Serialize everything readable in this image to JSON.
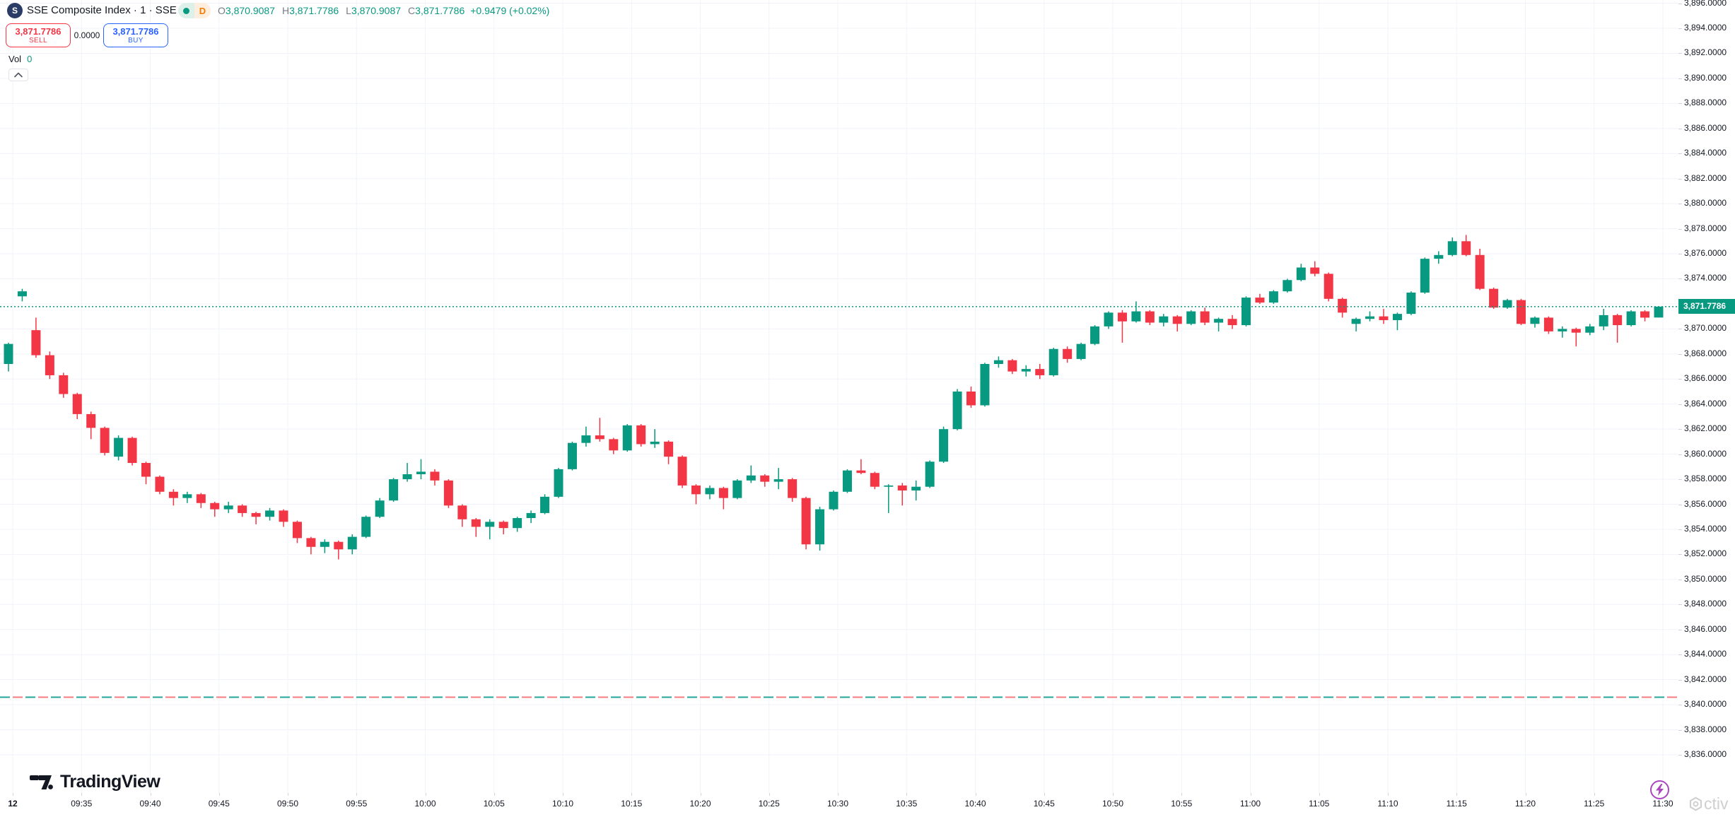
{
  "header": {
    "symbol_title": "SSE Composite Index · 1 · SSE",
    "timeframe_badge": "D",
    "ohlc": {
      "o_label": "O",
      "o": "3,870.9087",
      "h_label": "H",
      "h": "3,871.7786",
      "l_label": "L",
      "l": "3,870.9087",
      "c_label": "C",
      "c": "3,871.7786",
      "change": "+0.9479 (+0.02%)"
    }
  },
  "trade_panel": {
    "sell_price": "3,871.7786",
    "sell_label": "SELL",
    "spread": "0.0000",
    "buy_price": "3,871.7786",
    "buy_label": "BUY"
  },
  "volume": {
    "label": "Vol",
    "value": "0"
  },
  "price_axis": {
    "labels": [
      "3,896.0000",
      "3,894.0000",
      "3,892.0000",
      "3,890.0000",
      "3,888.0000",
      "3,886.0000",
      "3,884.0000",
      "3,882.0000",
      "3,880.0000",
      "3,878.0000",
      "3,876.0000",
      "3,874.0000",
      "3,872.0000",
      "3,870.0000",
      "3,868.0000",
      "3,866.0000",
      "3,864.0000",
      "3,862.0000",
      "3,860.0000",
      "3,858.0000",
      "3,856.0000",
      "3,854.0000",
      "3,852.0000",
      "3,850.0000",
      "3,848.0000",
      "3,846.0000",
      "3,844.0000",
      "3,842.0000",
      "3,840.0000",
      "3,838.0000",
      "3,836.0000"
    ],
    "last_price_label": "3,871.7786"
  },
  "time_axis": {
    "labels": [
      "12",
      "09:35",
      "09:40",
      "09:45",
      "09:50",
      "09:55",
      "10:00",
      "10:05",
      "10:10",
      "10:15",
      "10:20",
      "10:25",
      "10:30",
      "10:35",
      "10:40",
      "10:45",
      "10:50",
      "10:55",
      "11:00",
      "11:05",
      "11:10",
      "11:15",
      "11:20",
      "11:25",
      "11:30"
    ]
  },
  "footer": {
    "logo_text": "TradingView"
  },
  "watermark": {
    "text": "ctiv"
  },
  "colors": {
    "up": "#089981",
    "down": "#f23645",
    "buy": "#2962ff",
    "sell": "#f23645",
    "accent": "#089981",
    "grid": "#f0f3fa",
    "baseline_up": "#26a69a",
    "baseline_down": "#f77c80"
  },
  "chart_data": {
    "type": "candlestick",
    "title": "SSE Composite Index, 1-minute candles",
    "ylim": [
      3836,
      3896
    ],
    "last_price": 3871.7786,
    "baseline_price": 3840.6,
    "x": [
      "09:30",
      "09:31",
      "09:32",
      "09:33",
      "09:34",
      "09:35",
      "09:36",
      "09:37",
      "09:38",
      "09:39",
      "09:40",
      "09:41",
      "09:42",
      "09:43",
      "09:44",
      "09:45",
      "09:46",
      "09:47",
      "09:48",
      "09:49",
      "09:50",
      "09:51",
      "09:52",
      "09:53",
      "09:54",
      "09:55",
      "09:56",
      "09:57",
      "09:58",
      "09:59",
      "10:00",
      "10:01",
      "10:02",
      "10:03",
      "10:04",
      "10:05",
      "10:06",
      "10:07",
      "10:08",
      "10:09",
      "10:10",
      "10:11",
      "10:12",
      "10:13",
      "10:14",
      "10:15",
      "10:16",
      "10:17",
      "10:18",
      "10:19",
      "10:20",
      "10:21",
      "10:22",
      "10:23",
      "10:24",
      "10:25",
      "10:26",
      "10:27",
      "10:28",
      "10:29",
      "10:30",
      "10:31",
      "10:32",
      "10:33",
      "10:34",
      "10:35",
      "10:36",
      "10:37",
      "10:38",
      "10:39",
      "10:40",
      "10:41",
      "10:42",
      "10:43",
      "10:44",
      "10:45",
      "10:46",
      "10:47",
      "10:48",
      "10:49",
      "10:50",
      "10:51",
      "10:52",
      "10:53",
      "10:54",
      "10:55",
      "10:56",
      "10:57",
      "10:58",
      "10:59",
      "11:00",
      "11:01",
      "11:02",
      "11:03",
      "11:04",
      "11:05",
      "11:06",
      "11:07",
      "11:08",
      "11:09",
      "11:10",
      "11:11",
      "11:12",
      "11:13",
      "11:14",
      "11:15",
      "11:16",
      "11:17",
      "11:18",
      "11:19",
      "11:20",
      "11:21",
      "11:22",
      "11:23",
      "11:24",
      "11:25",
      "11:26",
      "11:27",
      "11:28",
      "11:29",
      "11:30"
    ],
    "series": [
      {
        "name": "SSE Composite Index",
        "ohlc": [
          [
            3867.2,
            3868.9,
            3866.6,
            3868.8
          ],
          [
            3872.6,
            3873.2,
            3872.2,
            3873.0
          ],
          [
            3869.9,
            3870.9,
            3867.7,
            3867.9
          ],
          [
            3867.9,
            3868.2,
            3866.0,
            3866.3
          ],
          [
            3866.3,
            3866.5,
            3864.5,
            3864.8
          ],
          [
            3864.8,
            3864.9,
            3862.8,
            3863.2
          ],
          [
            3863.2,
            3863.4,
            3861.2,
            3862.1
          ],
          [
            3862.1,
            3862.2,
            3859.9,
            3860.1
          ],
          [
            3859.8,
            3861.5,
            3859.5,
            3861.3
          ],
          [
            3861.3,
            3861.4,
            3859.1,
            3859.3
          ],
          [
            3859.3,
            3859.4,
            3857.6,
            3858.2
          ],
          [
            3858.2,
            3858.3,
            3856.8,
            3857.0
          ],
          [
            3857.0,
            3857.2,
            3855.9,
            3856.5
          ],
          [
            3856.5,
            3857.0,
            3856.1,
            3856.8
          ],
          [
            3856.8,
            3856.9,
            3855.7,
            3856.1
          ],
          [
            3856.1,
            3856.2,
            3855.0,
            3855.6
          ],
          [
            3855.6,
            3856.2,
            3855.3,
            3855.9
          ],
          [
            3855.9,
            3856.0,
            3855.0,
            3855.3
          ],
          [
            3855.3,
            3855.4,
            3854.4,
            3855.0
          ],
          [
            3855.0,
            3855.7,
            3854.7,
            3855.5
          ],
          [
            3855.5,
            3855.6,
            3854.2,
            3854.6
          ],
          [
            3854.6,
            3854.7,
            3852.9,
            3853.3
          ],
          [
            3853.3,
            3853.4,
            3852.0,
            3852.6
          ],
          [
            3852.6,
            3853.2,
            3852.1,
            3853.0
          ],
          [
            3853.0,
            3853.1,
            3851.6,
            3852.4
          ],
          [
            3852.4,
            3853.6,
            3852.0,
            3853.4
          ],
          [
            3853.4,
            3855.1,
            3853.3,
            3855.0
          ],
          [
            3855.0,
            3856.5,
            3854.9,
            3856.3
          ],
          [
            3856.3,
            3858.1,
            3856.2,
            3858.0
          ],
          [
            3858.0,
            3859.3,
            3857.8,
            3858.4
          ],
          [
            3858.4,
            3859.6,
            3858.0,
            3858.6
          ],
          [
            3858.6,
            3858.8,
            3857.5,
            3857.9
          ],
          [
            3857.9,
            3858.0,
            3855.7,
            3855.9
          ],
          [
            3855.9,
            3856.0,
            3854.2,
            3854.8
          ],
          [
            3854.8,
            3854.9,
            3853.4,
            3854.2
          ],
          [
            3854.2,
            3854.8,
            3853.2,
            3854.6
          ],
          [
            3854.6,
            3854.7,
            3853.6,
            3854.1
          ],
          [
            3854.1,
            3855.0,
            3853.8,
            3854.9
          ],
          [
            3854.9,
            3855.5,
            3854.5,
            3855.3
          ],
          [
            3855.3,
            3856.8,
            3855.2,
            3856.6
          ],
          [
            3856.6,
            3858.9,
            3856.5,
            3858.8
          ],
          [
            3858.8,
            3861.0,
            3858.7,
            3860.9
          ],
          [
            3860.9,
            3862.2,
            3860.6,
            3861.5
          ],
          [
            3861.5,
            3862.9,
            3861.0,
            3861.2
          ],
          [
            3861.2,
            3861.3,
            3860.0,
            3860.3
          ],
          [
            3860.3,
            3862.4,
            3860.2,
            3862.3
          ],
          [
            3862.3,
            3862.4,
            3860.6,
            3860.8
          ],
          [
            3860.8,
            3862.0,
            3860.5,
            3861.0
          ],
          [
            3861.0,
            3861.1,
            3859.2,
            3859.8
          ],
          [
            3859.8,
            3859.9,
            3857.3,
            3857.5
          ],
          [
            3857.5,
            3857.6,
            3856.0,
            3856.8
          ],
          [
            3856.8,
            3857.5,
            3856.4,
            3857.3
          ],
          [
            3857.3,
            3857.4,
            3855.6,
            3856.5
          ],
          [
            3856.5,
            3858.0,
            3856.4,
            3857.9
          ],
          [
            3857.9,
            3859.1,
            3857.7,
            3858.3
          ],
          [
            3858.3,
            3858.4,
            3857.4,
            3857.8
          ],
          [
            3857.8,
            3858.9,
            3857.2,
            3858.0
          ],
          [
            3858.0,
            3858.1,
            3856.2,
            3856.5
          ],
          [
            3856.5,
            3856.6,
            3852.4,
            3852.8
          ],
          [
            3852.8,
            3855.8,
            3852.3,
            3855.6
          ],
          [
            3855.6,
            3857.1,
            3855.5,
            3857.0
          ],
          [
            3857.0,
            3858.8,
            3856.9,
            3858.7
          ],
          [
            3858.7,
            3859.6,
            3858.4,
            3858.5
          ],
          [
            3858.5,
            3858.6,
            3857.2,
            3857.4
          ],
          [
            3857.4,
            3857.6,
            3855.3,
            3857.5
          ],
          [
            3857.5,
            3857.7,
            3855.9,
            3857.1
          ],
          [
            3857.1,
            3857.9,
            3856.3,
            3857.4
          ],
          [
            3857.4,
            3859.5,
            3857.3,
            3859.4
          ],
          [
            3859.4,
            3862.2,
            3859.3,
            3862.0
          ],
          [
            3862.0,
            3865.2,
            3861.9,
            3865.0
          ],
          [
            3865.0,
            3865.4,
            3863.7,
            3863.9
          ],
          [
            3863.9,
            3867.3,
            3863.8,
            3867.2
          ],
          [
            3867.2,
            3867.8,
            3866.9,
            3867.5
          ],
          [
            3867.5,
            3867.6,
            3866.4,
            3866.6
          ],
          [
            3866.6,
            3867.1,
            3866.2,
            3866.8
          ],
          [
            3866.8,
            3867.2,
            3866.0,
            3866.3
          ],
          [
            3866.3,
            3868.5,
            3866.2,
            3868.4
          ],
          [
            3868.4,
            3868.6,
            3867.3,
            3867.6
          ],
          [
            3867.6,
            3868.9,
            3867.5,
            3868.8
          ],
          [
            3868.8,
            3870.3,
            3868.7,
            3870.2
          ],
          [
            3870.2,
            3871.4,
            3870.0,
            3871.3
          ],
          [
            3871.3,
            3871.5,
            3868.9,
            3870.6
          ],
          [
            3870.6,
            3872.2,
            3870.5,
            3871.4
          ],
          [
            3871.4,
            3871.5,
            3870.3,
            3870.5
          ],
          [
            3870.5,
            3871.2,
            3870.2,
            3871.0
          ],
          [
            3871.0,
            3871.1,
            3869.8,
            3870.4
          ],
          [
            3870.4,
            3871.5,
            3870.3,
            3871.4
          ],
          [
            3871.4,
            3871.7,
            3870.3,
            3870.5
          ],
          [
            3870.5,
            3870.9,
            3869.8,
            3870.8
          ],
          [
            3870.8,
            3871.1,
            3870.0,
            3870.3
          ],
          [
            3870.3,
            3872.6,
            3870.2,
            3872.5
          ],
          [
            3872.5,
            3872.8,
            3872.0,
            3872.1
          ],
          [
            3872.1,
            3873.1,
            3872.0,
            3873.0
          ],
          [
            3873.0,
            3874.0,
            3872.9,
            3873.9
          ],
          [
            3873.9,
            3875.2,
            3873.8,
            3874.9
          ],
          [
            3874.9,
            3875.4,
            3874.2,
            3874.4
          ],
          [
            3874.4,
            3874.5,
            3872.2,
            3872.4
          ],
          [
            3872.4,
            3872.5,
            3870.9,
            3871.3
          ],
          [
            3870.4,
            3870.9,
            3869.8,
            3870.8
          ],
          [
            3870.8,
            3871.4,
            3870.6,
            3871.0
          ],
          [
            3871.0,
            3871.6,
            3870.4,
            3870.7
          ],
          [
            3870.7,
            3871.3,
            3869.9,
            3871.2
          ],
          [
            3871.2,
            3873.0,
            3871.1,
            3872.9
          ],
          [
            3872.9,
            3875.7,
            3872.8,
            3875.6
          ],
          [
            3875.6,
            3876.2,
            3875.2,
            3875.9
          ],
          [
            3875.9,
            3877.3,
            3875.8,
            3877.0
          ],
          [
            3877.0,
            3877.5,
            3875.8,
            3875.9
          ],
          [
            3875.9,
            3876.4,
            3873.1,
            3873.2
          ],
          [
            3873.2,
            3873.3,
            3871.6,
            3871.7
          ],
          [
            3871.7,
            3872.4,
            3871.6,
            3872.3
          ],
          [
            3872.3,
            3872.4,
            3870.3,
            3870.4
          ],
          [
            3870.4,
            3871.0,
            3870.1,
            3870.9
          ],
          [
            3870.9,
            3871.0,
            3869.6,
            3869.8
          ],
          [
            3869.8,
            3870.2,
            3869.3,
            3870.0
          ],
          [
            3870.0,
            3870.1,
            3868.6,
            3869.7
          ],
          [
            3869.7,
            3870.4,
            3869.5,
            3870.2
          ],
          [
            3870.2,
            3871.6,
            3869.9,
            3871.1
          ],
          [
            3871.1,
            3871.2,
            3868.9,
            3870.3
          ],
          [
            3870.3,
            3871.5,
            3870.2,
            3871.4
          ],
          [
            3871.4,
            3871.5,
            3870.6,
            3870.9
          ],
          [
            3870.9087,
            3871.7786,
            3870.9087,
            3871.7786
          ]
        ]
      }
    ]
  }
}
